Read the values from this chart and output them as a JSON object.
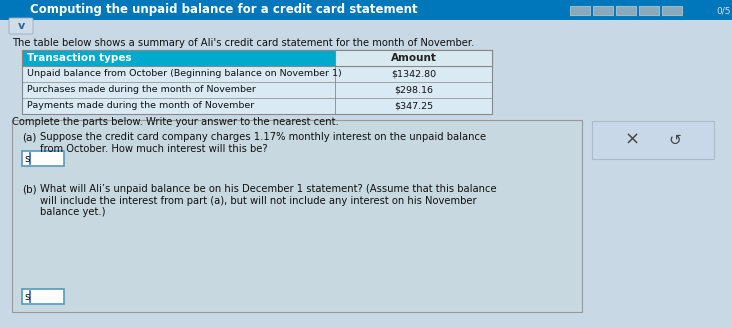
{
  "title": "Computing the unpaid balance for a credit card statement",
  "title_color": "#ffffff",
  "title_bg_color": "#0077bb",
  "page_bg": "#b8ccd8",
  "content_bg": "#c8d8e4",
  "progress_bar_color": "#88aabb",
  "progress_bar_border": "#99bbcc",
  "progress_text": "0/5",
  "chevron_text": "v",
  "chevron_color": "#2266aa",
  "chevron_bg": "#d0dde8",
  "intro_text": "The table below shows a summary of Ali's credit card statement for the month of November.",
  "table_header_col1": "Transaction types",
  "table_header_col2": "Amount",
  "table_header_bg": "#00aacc",
  "table_header_text_color": "#ffffff",
  "table_amount_header_bg": "#d8eaf0",
  "table_amount_header_text": "#222222",
  "table_body_bg": "#daeaf4",
  "table_border_color": "#888888",
  "table_rows": [
    [
      "Unpaid balance from October (Beginning balance on November 1)",
      "$1342.80"
    ],
    [
      "Purchases made during the month of November",
      "$298.16"
    ],
    [
      "Payments made during the month of November",
      "$347.25"
    ]
  ],
  "complete_text": "Complete the parts below. Write your answer to the nearest cent.",
  "part_a_label": "(a)",
  "part_a_text": "Suppose the credit card company charges 1.17% monthly interest on the unpaid balance\nfrom October. How much interest will this be?",
  "part_b_label": "(b)",
  "part_b_text": "What will Ali’s unpaid balance be on his December 1 statement? (Assume that this balance\nwill include the interest from part (a), but will not include any interest on his November\nbalance yet.)",
  "input_prefix": "s",
  "parts_box_bg": "#c8d8e0",
  "parts_box_border": "#999999",
  "input_box_bg": "#ffffff",
  "input_box_border": "#5599bb",
  "side_box_bg": "#c8d8e8",
  "side_box_border": "#aabbcc",
  "font_color": "#111111",
  "font_color_light": "#333333"
}
